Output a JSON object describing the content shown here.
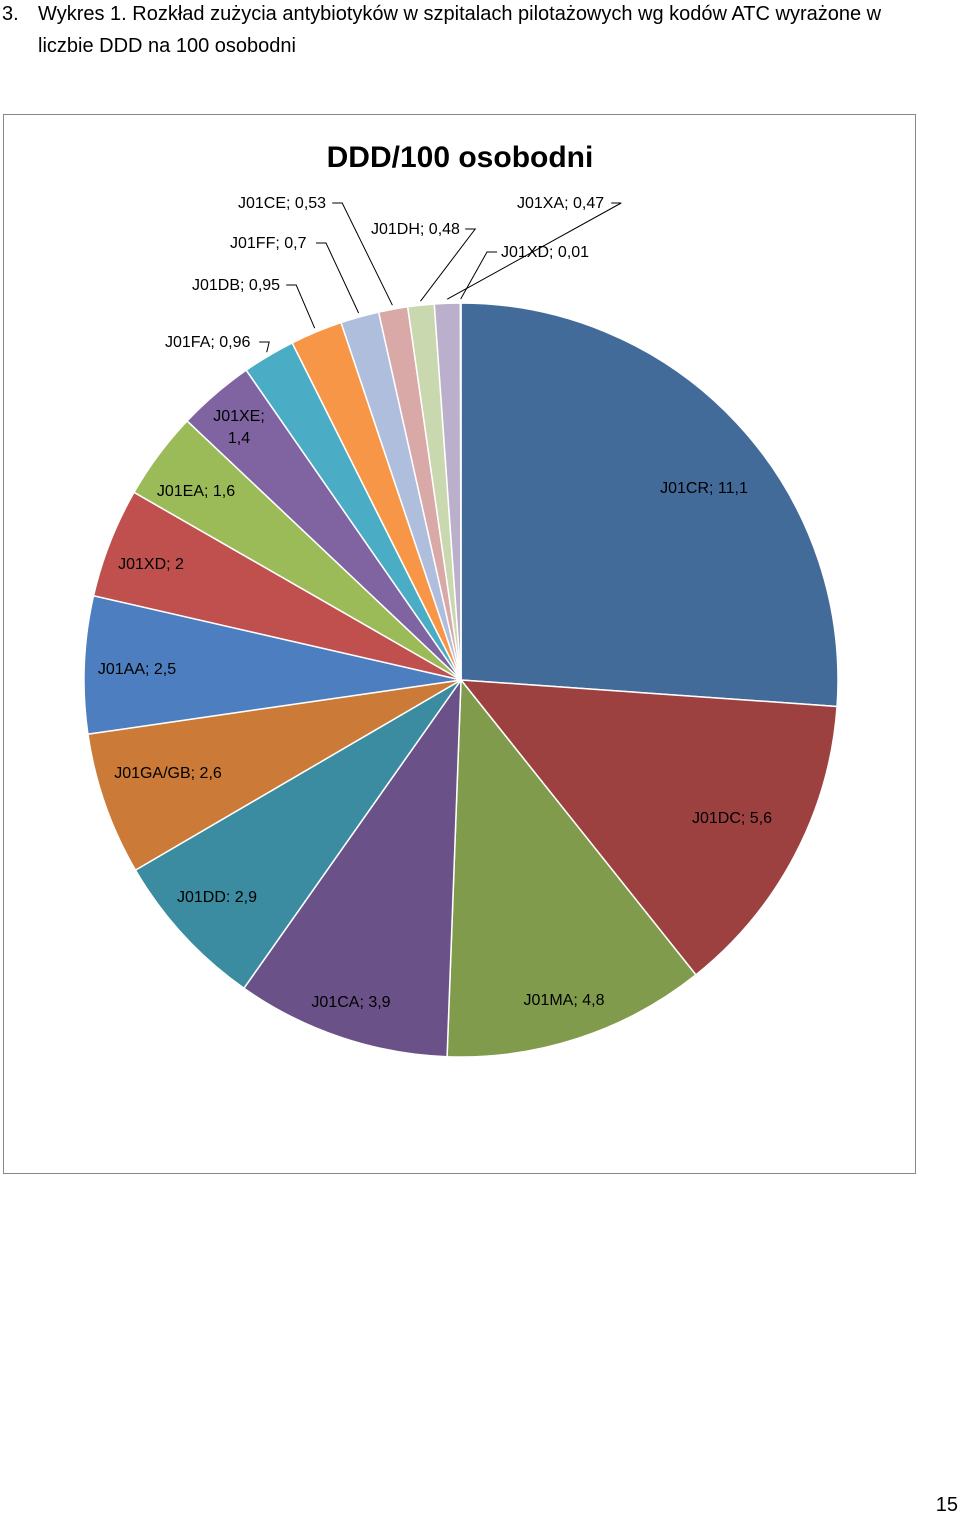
{
  "caption": {
    "number": "3.",
    "line1": "Wykres 1. Rozkład zużycia antybiotyków w szpitalach pilotażowych wg kodów ATC wyrażone w",
    "line2": "liczbie DDD na 100 osobodni"
  },
  "chart_data": {
    "type": "pie",
    "title": "DDD/100 osobodni",
    "slices": [
      {
        "label": "J01CR; 11,1",
        "name": "J01CR",
        "value": 11.1,
        "color": "#426B9A"
      },
      {
        "label": "J01DC; 5,6",
        "name": "J01DC",
        "value": 5.6,
        "color": "#9C4140"
      },
      {
        "label": "J01MA; 4,8",
        "name": "J01MA",
        "value": 4.8,
        "color": "#7F9B4B"
      },
      {
        "label": "J01CA; 3,9",
        "name": "J01CA",
        "value": 3.9,
        "color": "#6A5187"
      },
      {
        "label": "J01DD: 2,9",
        "name": "J01DD",
        "value": 2.9,
        "color": "#3B8CA0"
      },
      {
        "label": "J01GA/GB; 2,6",
        "name": "J01GA/GB",
        "value": 2.6,
        "color": "#CC7A37"
      },
      {
        "label": "J01AA; 2,5",
        "name": "J01AA",
        "value": 2.5,
        "color": "#4D7EBF"
      },
      {
        "label": "J01XD; 2",
        "name": "J01XD",
        "value": 2.0,
        "color": "#C0504D"
      },
      {
        "label": "J01EA; 1,6",
        "name": "J01EA",
        "value": 1.6,
        "color": "#9BBB59"
      },
      {
        "label": "J01XE; 1,4",
        "name": "J01XE",
        "value": 1.4,
        "color": "#8064A2"
      },
      {
        "label": "J01FA; 0,96",
        "name": "J01FA",
        "value": 0.96,
        "color": "#4BACC6"
      },
      {
        "label": "J01DB; 0,95",
        "name": "J01DB",
        "value": 0.95,
        "color": "#F79646"
      },
      {
        "label": "J01FF; 0,7",
        "name": "J01FF",
        "value": 0.7,
        "color": "#AFBEDC"
      },
      {
        "label": "J01CE; 0,53",
        "name": "J01CE",
        "value": 0.53,
        "color": "#D9A9A8"
      },
      {
        "label": "J01DH; 0,48",
        "name": "J01DH",
        "value": 0.48,
        "color": "#C9D8AE"
      },
      {
        "label": "J01XA; 0,47",
        "name": "J01XA",
        "value": 0.47,
        "color": "#BBB0CC"
      },
      {
        "label": "J01XD; 0,01",
        "name": "J01XD",
        "value": 0.01,
        "color": "#A9D1DD"
      }
    ]
  },
  "page_number": "15"
}
